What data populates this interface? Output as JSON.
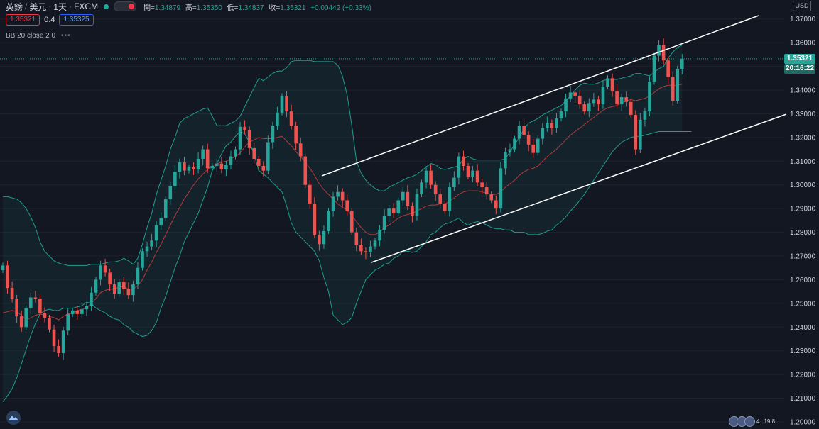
{
  "header": {
    "symbol": "英鎊",
    "quote": "美元",
    "interval": "1天",
    "broker": "FXCM",
    "separator": "/",
    "open_label": "開=",
    "open_value": "1.34879",
    "high_label": "高=",
    "high_value": "1.35350",
    "low_label": "低=",
    "low_value": "1.34837",
    "close_label": "收=",
    "close_value": "1.35321",
    "change_value": "+0.00442 (+0.33%)"
  },
  "trade": {
    "sell_price": "1.35321",
    "spread": "0.4",
    "buy_price": "1.35325"
  },
  "indicator": {
    "label": "BB 20 close 2 0",
    "more": "•••"
  },
  "axis": {
    "currency": "USD",
    "last_price": "1.35321",
    "countdown": "20:16:22"
  },
  "events": {
    "count": "4",
    "extra": "19.8"
  },
  "colors": {
    "background": "#131722",
    "up": "#26a69a",
    "down": "#ef5350",
    "band": "#1a9a8a",
    "basis": "#b33b3b",
    "channel": "#ffffff"
  },
  "chart_data": {
    "type": "candlestick",
    "yticks": [
      "1.20000",
      "1.21000",
      "1.22000",
      "1.23000",
      "1.24000",
      "1.25000",
      "1.26000",
      "1.27000",
      "1.28000",
      "1.29000",
      "1.30000",
      "1.31000",
      "1.32000",
      "1.33000",
      "1.34000",
      "1.35000",
      "1.36000",
      "1.37000"
    ],
    "ylim": [
      1.197,
      1.378
    ],
    "closes": [
      1.266,
      1.2565,
      1.252,
      1.2445,
      1.24,
      1.248,
      1.2525,
      1.252,
      1.246,
      1.244,
      1.239,
      1.232,
      1.229,
      1.2385,
      1.2455,
      1.247,
      1.2455,
      1.2475,
      1.249,
      1.2545,
      1.26,
      1.266,
      1.263,
      1.258,
      1.254,
      1.259,
      1.256,
      1.2535,
      1.258,
      1.265,
      1.272,
      1.274,
      1.2765,
      1.283,
      1.286,
      1.294,
      1.2995,
      1.3055,
      1.3095,
      1.306,
      1.3075,
      1.3065,
      1.311,
      1.315,
      1.307,
      1.308,
      1.309,
      1.3065,
      1.3085,
      1.312,
      1.315,
      1.3245,
      1.323,
      1.3155,
      1.311,
      1.308,
      1.306,
      1.318,
      1.325,
      1.3305,
      1.3375,
      1.331,
      1.325,
      1.3175,
      1.312,
      1.3,
      1.292,
      1.279,
      1.275,
      1.2805,
      1.289,
      1.295,
      1.297,
      1.2935,
      1.289,
      1.28,
      1.2745,
      1.272,
      1.2715,
      1.274,
      1.2765,
      1.281,
      1.287,
      1.29,
      1.288,
      1.2935,
      1.297,
      1.291,
      1.287,
      1.296,
      1.301,
      1.306,
      1.3,
      1.296,
      1.292,
      1.289,
      1.299,
      1.303,
      1.312,
      1.308,
      1.3035,
      1.306,
      1.301,
      1.299,
      1.296,
      1.2935,
      1.29,
      1.307,
      1.314,
      1.315,
      1.3195,
      1.325,
      1.321,
      1.317,
      1.3135,
      1.3195,
      1.324,
      1.326,
      1.324,
      1.328,
      1.331,
      1.3365,
      1.339,
      1.3375,
      1.334,
      1.331,
      1.3345,
      1.336,
      1.334,
      1.3415,
      1.345,
      1.3395,
      1.334,
      1.337,
      1.335,
      1.3295,
      1.315,
      1.3275,
      1.331,
      1.3435,
      1.3545,
      1.359,
      1.3525,
      1.3455,
      1.3355,
      1.349,
      1.3532
    ],
    "bollinger_basis": [
      1.246,
      1.2465,
      1.247,
      1.2465,
      1.245,
      1.243,
      1.244,
      1.245,
      1.2455,
      1.245,
      1.2445,
      1.244,
      1.243,
      1.2445,
      1.2455,
      1.246,
      1.247,
      1.2475,
      1.248,
      1.25,
      1.252,
      1.2545,
      1.2555,
      1.256,
      1.256,
      1.257,
      1.257,
      1.256,
      1.256,
      1.2575,
      1.26,
      1.264,
      1.2675,
      1.2715,
      1.275,
      1.279,
      1.283,
      1.287,
      1.2905,
      1.294,
      1.297,
      1.3,
      1.3025,
      1.3045,
      1.3065,
      1.308,
      1.309,
      1.3095,
      1.31,
      1.311,
      1.312,
      1.3135,
      1.316,
      1.318,
      1.319,
      1.32,
      1.3195,
      1.3195,
      1.3195,
      1.32,
      1.3205,
      1.3185,
      1.3165,
      1.314,
      1.312,
      1.3095,
      1.307,
      1.304,
      1.3005,
      1.298,
      1.296,
      1.294,
      1.292,
      1.2905,
      1.2895,
      1.287,
      1.2845,
      1.282,
      1.28,
      1.279,
      1.279,
      1.28,
      1.282,
      1.283,
      1.2845,
      1.286,
      1.287,
      1.2875,
      1.288,
      1.289,
      1.29,
      1.291,
      1.2915,
      1.2915,
      1.292,
      1.292,
      1.293,
      1.2945,
      1.296,
      1.297,
      1.2975,
      1.2975,
      1.2975,
      1.297,
      1.2965,
      1.296,
      1.296,
      1.297,
      1.299,
      1.3005,
      1.302,
      1.304,
      1.3055,
      1.3065,
      1.307,
      1.308,
      1.31,
      1.312,
      1.3135,
      1.315,
      1.317,
      1.319,
      1.321,
      1.3225,
      1.324,
      1.3255,
      1.327,
      1.3285,
      1.33,
      1.3315,
      1.3325,
      1.333,
      1.3335,
      1.3345,
      1.3355,
      1.336,
      1.3355,
      1.336,
      1.3365,
      1.3375,
      1.339,
      1.3405,
      1.3415,
      1.342,
      1.342,
      1.342,
      1.3425
    ],
    "bollinger_upper": [
      1.295,
      1.295,
      1.2945,
      1.294,
      1.2925,
      1.29,
      1.2865,
      1.282,
      1.276,
      1.272,
      1.27,
      1.268,
      1.267,
      1.2665,
      1.266,
      1.266,
      1.266,
      1.266,
      1.266,
      1.2665,
      1.2665,
      1.2665,
      1.267,
      1.2675,
      1.2675,
      1.268,
      1.269,
      1.268,
      1.2665,
      1.269,
      1.275,
      1.282,
      1.288,
      1.296,
      1.302,
      1.308,
      1.315,
      1.32,
      1.326,
      1.328,
      1.329,
      1.33,
      1.331,
      1.332,
      1.3325,
      1.329,
      1.325,
      1.325,
      1.325,
      1.326,
      1.327,
      1.329,
      1.333,
      1.337,
      1.341,
      1.345,
      1.344,
      1.3455,
      1.347,
      1.348,
      1.348,
      1.3495,
      1.352,
      1.3525,
      1.3525,
      1.3525,
      1.3525,
      1.352,
      1.352,
      1.352,
      1.352,
      1.352,
      1.3505,
      1.346,
      1.338,
      1.325,
      1.31,
      1.305,
      1.302,
      1.3,
      1.2985,
      1.2975,
      1.2975,
      1.299,
      1.3,
      1.301,
      1.302,
      1.303,
      1.3035,
      1.3045,
      1.306,
      1.3075,
      1.309,
      1.3085,
      1.307,
      1.3065,
      1.307,
      1.3075,
      1.308,
      1.311,
      1.312,
      1.311,
      1.3105,
      1.3105,
      1.3105,
      1.3105,
      1.3105,
      1.3105,
      1.311,
      1.314,
      1.317,
      1.32,
      1.3235,
      1.326,
      1.327,
      1.328,
      1.3295,
      1.3305,
      1.3315,
      1.3325,
      1.3335,
      1.3355,
      1.3375,
      1.34,
      1.342,
      1.343,
      1.3425,
      1.3425,
      1.343,
      1.344,
      1.3445,
      1.3445,
      1.3445,
      1.345,
      1.3455,
      1.346,
      1.347,
      1.347,
      1.3465,
      1.346,
      1.3475,
      1.349,
      1.35,
      1.3535,
      1.356,
      1.358,
      1.359
    ],
    "bollinger_lower": [
      1.2085,
      1.211,
      1.214,
      1.2185,
      1.2245,
      1.2305,
      1.2365,
      1.2415,
      1.2455,
      1.247,
      1.2475,
      1.247,
      1.247,
      1.248,
      1.248,
      1.248,
      1.2485,
      1.249,
      1.2505,
      1.25,
      1.248,
      1.247,
      1.246,
      1.2445,
      1.2435,
      1.243,
      1.241,
      1.24,
      1.238,
      1.237,
      1.236,
      1.2365,
      1.2385,
      1.242,
      1.248,
      1.253,
      1.259,
      1.265,
      1.27,
      1.276,
      1.28,
      1.284,
      1.288,
      1.2935,
      1.299,
      1.306,
      1.309,
      1.313,
      1.3165,
      1.318,
      1.3205,
      1.3225,
      1.3215,
      1.318,
      1.313,
      1.306,
      1.3045,
      1.303,
      1.301,
      1.299,
      1.297,
      1.291,
      1.284,
      1.28,
      1.278,
      1.276,
      1.274,
      1.272,
      1.268,
      1.261,
      1.255,
      1.245,
      1.243,
      1.241,
      1.242,
      1.244,
      1.25,
      1.255,
      1.26,
      1.262,
      1.264,
      1.265,
      1.2665,
      1.267,
      1.269,
      1.27,
      1.272,
      1.272,
      1.2715,
      1.272,
      1.274,
      1.276,
      1.279,
      1.28,
      1.282,
      1.2835,
      1.284,
      1.285,
      1.286,
      1.284,
      1.283,
      1.284,
      1.2845,
      1.284,
      1.283,
      1.282,
      1.2815,
      1.2815,
      1.281,
      1.281,
      1.28,
      1.28,
      1.28,
      1.279,
      1.279,
      1.279,
      1.2795,
      1.2805,
      1.281,
      1.283,
      1.2845,
      1.2865,
      1.289,
      1.291,
      1.2935,
      1.296,
      1.299,
      1.302,
      1.305,
      1.308,
      1.311,
      1.314,
      1.316,
      1.318,
      1.319,
      1.32,
      1.3205,
      1.3205,
      1.321,
      1.3215,
      1.322,
      1.3225,
      1.3225,
      1.3225,
      1.3225,
      1.3225,
      1.3225,
      1.3225,
      1.3225
    ]
  }
}
